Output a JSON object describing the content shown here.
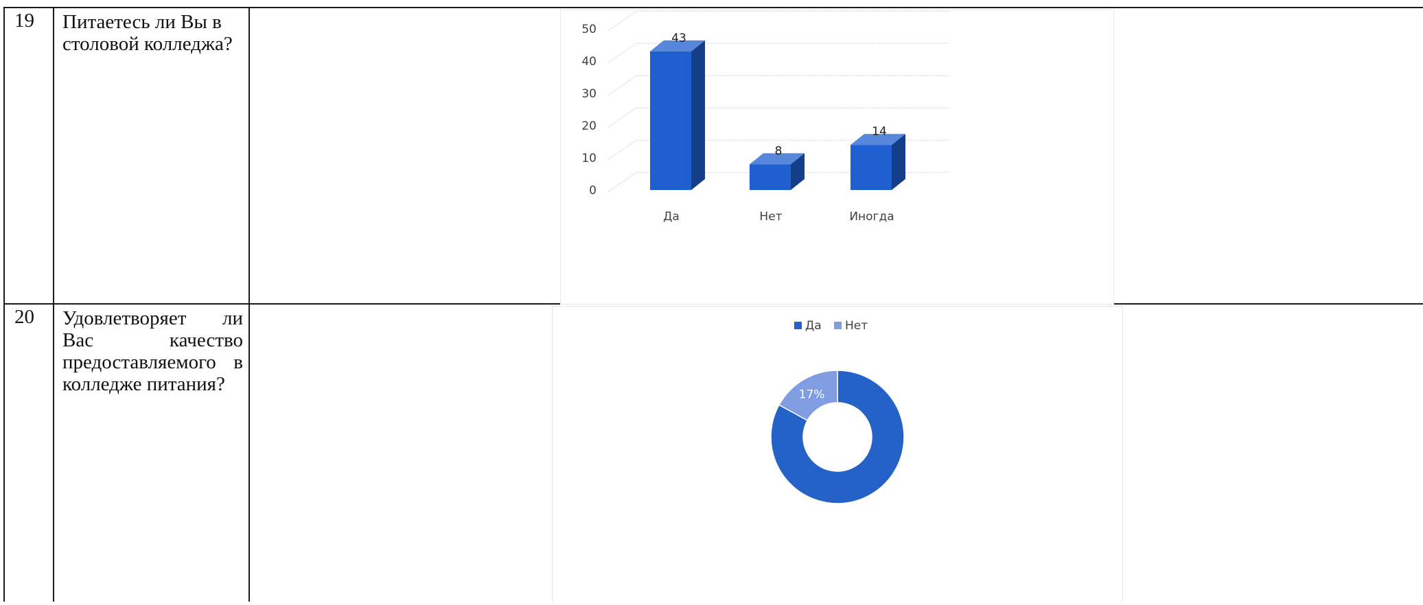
{
  "rows": [
    {
      "number": "19",
      "question": "Питаетесь ли Вы в столовой колледжа?"
    },
    {
      "number": "20",
      "question": "Удовлетворяет ли Вас качество предоставляемого в колледже питания?"
    }
  ],
  "chart_data": [
    {
      "type": "bar",
      "style": "3d-column",
      "categories": [
        "Да",
        "Нет",
        "Иногда"
      ],
      "values": [
        43,
        8,
        14
      ],
      "data_labels": [
        "43",
        "8",
        "14"
      ],
      "y_ticks": [
        "0",
        "10",
        "20",
        "30",
        "40",
        "50"
      ],
      "ylim": [
        0,
        50
      ],
      "grid": true,
      "legend": "none",
      "bar_color": "#1f5fcf"
    },
    {
      "type": "pie",
      "style": "doughnut",
      "categories": [
        "Да",
        "Нет"
      ],
      "values": [
        83,
        17
      ],
      "data_labels": [
        "83%",
        "17%"
      ],
      "legend": "top",
      "colors": [
        "#2462c8",
        "#7f9de0"
      ]
    }
  ]
}
